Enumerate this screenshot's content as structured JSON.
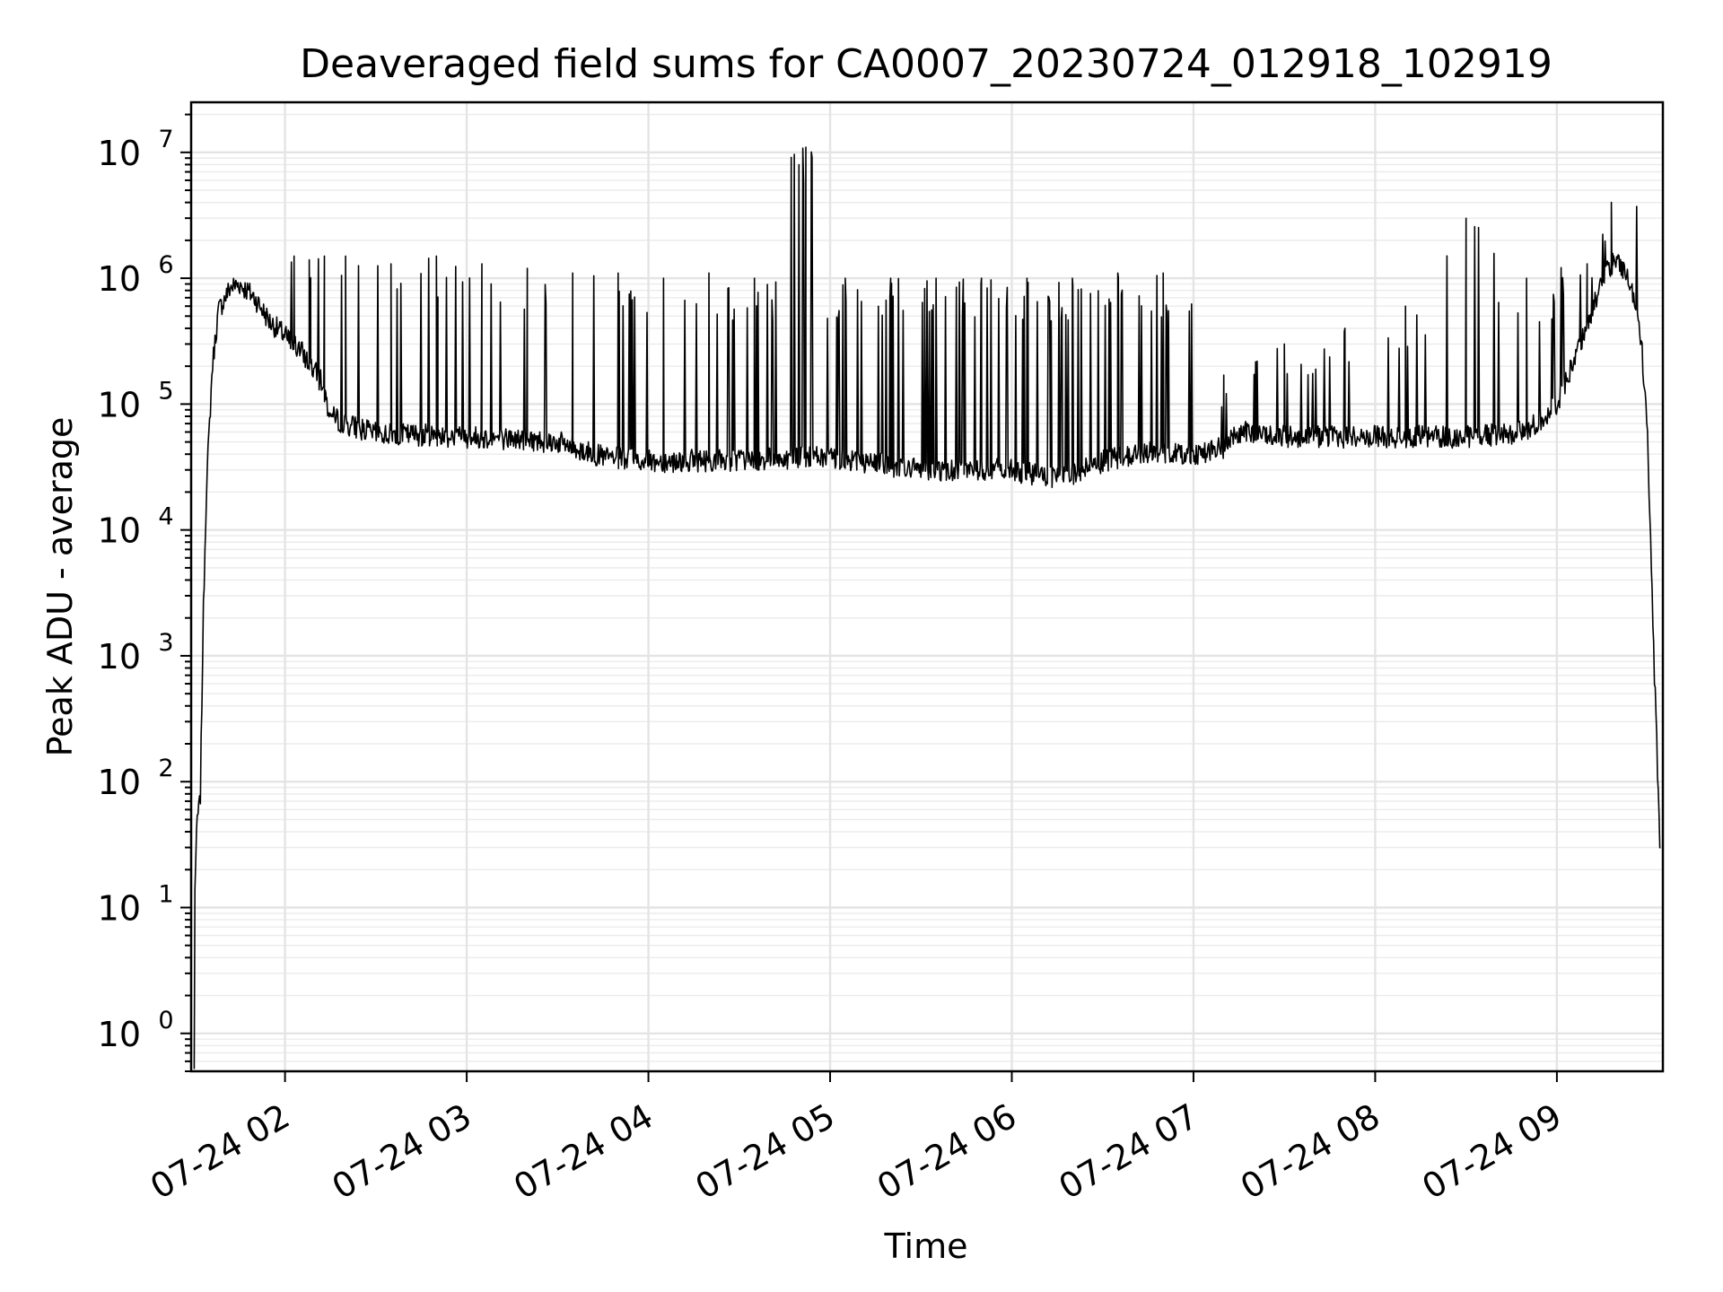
{
  "chart_data": {
    "type": "line",
    "title": "Deaveraged field sums for CA0007_20230724_012918_102919",
    "xlabel": "Time",
    "ylabel": "Peak ADU - average",
    "yscale": "log",
    "grid": "on",
    "xlim": [
      "2023-07-24 01:29",
      "2023-07-24 09:35"
    ],
    "ylim": [
      0.5,
      25000000
    ],
    "x_tick_labels": [
      "07-24 02",
      "07-24 03",
      "07-24 04",
      "07-24 05",
      "07-24 06",
      "07-24 07",
      "07-24 08",
      "07-24 09"
    ],
    "y_ticks": [
      {
        "base": "10",
        "exp": "0",
        "value": 1
      },
      {
        "base": "10",
        "exp": "1",
        "value": 10
      },
      {
        "base": "10",
        "exp": "2",
        "value": 100
      },
      {
        "base": "10",
        "exp": "3",
        "value": 1000
      },
      {
        "base": "10",
        "exp": "4",
        "value": 10000
      },
      {
        "base": "10",
        "exp": "5",
        "value": 100000
      },
      {
        "base": "10",
        "exp": "6",
        "value": 1000000
      },
      {
        "base": "10",
        "exp": "7",
        "value": 10000000
      }
    ],
    "series": [
      {
        "color": "#000000",
        "baseline": [
          [
            "2023-07-24 01:30",
            0.5
          ],
          [
            "2023-07-24 01:30",
            10
          ],
          [
            "2023-07-24 01:31",
            50
          ],
          [
            "2023-07-24 01:32",
            70
          ],
          [
            "2023-07-24 01:33",
            2000
          ],
          [
            "2023-07-24 01:34",
            20000
          ],
          [
            "2023-07-24 01:36",
            200000
          ],
          [
            "2023-07-24 01:38",
            550000
          ],
          [
            "2023-07-24 01:42",
            850000
          ],
          [
            "2023-07-24 01:45",
            900000
          ],
          [
            "2023-07-24 01:50",
            700000
          ],
          [
            "2023-07-24 01:55",
            450000
          ],
          [
            "2023-07-24 02:00",
            350000
          ],
          [
            "2023-07-24 02:06",
            250000
          ],
          [
            "2023-07-24 02:12",
            150000
          ],
          [
            "2023-07-24 02:15",
            80000
          ],
          [
            "2023-07-24 02:20",
            70000
          ],
          [
            "2023-07-24 02:30",
            58000
          ],
          [
            "2023-07-24 02:45",
            57000
          ],
          [
            "2023-07-24 03:00",
            55000
          ],
          [
            "2023-07-24 03:15",
            53000
          ],
          [
            "2023-07-24 03:30",
            50000
          ],
          [
            "2023-07-24 03:45",
            38000
          ],
          [
            "2023-07-24 04:00",
            35000
          ],
          [
            "2023-07-24 04:30",
            36000
          ],
          [
            "2023-07-24 05:00",
            38000
          ],
          [
            "2023-07-24 05:30",
            30000
          ],
          [
            "2023-07-24 06:00",
            30000
          ],
          [
            "2023-07-24 06:15",
            25000
          ],
          [
            "2023-07-24 06:30",
            35000
          ],
          [
            "2023-07-24 06:45",
            42000
          ],
          [
            "2023-07-24 07:00",
            40000
          ],
          [
            "2023-07-24 07:10",
            45000
          ],
          [
            "2023-07-24 07:15",
            60000
          ],
          [
            "2023-07-24 07:30",
            55000
          ],
          [
            "2023-07-24 08:00",
            55000
          ],
          [
            "2023-07-24 08:30",
            55000
          ],
          [
            "2023-07-24 08:50",
            60000
          ],
          [
            "2023-07-24 09:00",
            100000
          ],
          [
            "2023-07-24 09:10",
            400000
          ],
          [
            "2023-07-24 09:15",
            1000000
          ],
          [
            "2023-07-24 09:20",
            1500000
          ],
          [
            "2023-07-24 09:25",
            800000
          ],
          [
            "2023-07-24 09:28",
            300000
          ],
          [
            "2023-07-24 09:30",
            50000
          ],
          [
            "2023-07-24 09:32",
            1000
          ],
          [
            "2023-07-24 09:33",
            200
          ],
          [
            "2023-07-24 09:34",
            30
          ]
        ],
        "spikes": [
          [
            "2023-07-24 02:03",
            1500000
          ],
          [
            "2023-07-24 02:08",
            1400000
          ],
          [
            "2023-07-24 02:13",
            1500000
          ],
          [
            "2023-07-24 02:20",
            1500000
          ],
          [
            "2023-07-24 02:35",
            1300000
          ],
          [
            "2023-07-24 02:50",
            1500000
          ],
          [
            "2023-07-24 03:05",
            1300000
          ],
          [
            "2023-07-24 03:20",
            1200000
          ],
          [
            "2023-07-24 03:35",
            1100000
          ],
          [
            "2023-07-24 03:50",
            1100000
          ],
          [
            "2023-07-24 04:05",
            1000000
          ],
          [
            "2023-07-24 04:20",
            1100000
          ],
          [
            "2023-07-24 04:35",
            1000000
          ],
          [
            "2023-07-24 04:52",
            11000000
          ],
          [
            "2023-07-24 05:05",
            1000000
          ],
          [
            "2023-07-24 05:20",
            1000000
          ],
          [
            "2023-07-24 05:35",
            1000000
          ],
          [
            "2023-07-24 05:50",
            1000000
          ],
          [
            "2023-07-24 06:05",
            1000000
          ],
          [
            "2023-07-24 06:20",
            1000000
          ],
          [
            "2023-07-24 06:35",
            1100000
          ],
          [
            "2023-07-24 06:50",
            1100000
          ],
          [
            "2023-07-24 07:10",
            170000
          ],
          [
            "2023-07-24 07:30",
            300000
          ],
          [
            "2023-07-24 07:50",
            400000
          ],
          [
            "2023-07-24 08:10",
            600000
          ],
          [
            "2023-07-24 08:30",
            3000000
          ],
          [
            "2023-07-24 08:50",
            1000000
          ],
          [
            "2023-07-24 09:10",
            1300000
          ],
          [
            "2023-07-24 09:18",
            4000000
          ]
        ]
      }
    ]
  }
}
